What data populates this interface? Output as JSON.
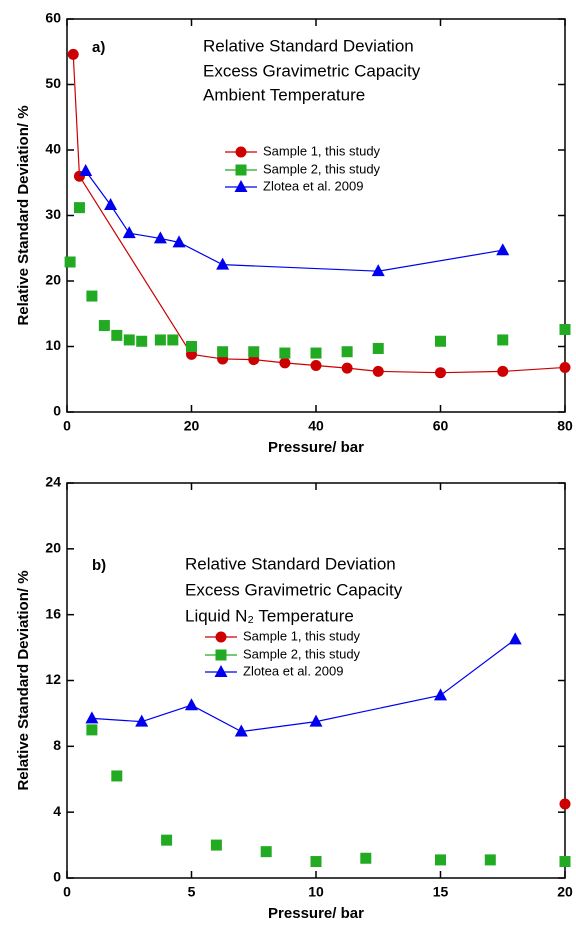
{
  "chart_data": [
    {
      "type": "line",
      "panel_label": "a)",
      "annotations": [
        "Relative Standard Deviation",
        "Excess Gravimetric Capacity",
        "Ambient Temperature"
      ],
      "x_label": "Pressure/ bar",
      "y_label": "Relative Standard Deviation/ %",
      "xlim": [
        0,
        80
      ],
      "xticks": [
        0,
        20,
        40,
        60,
        80
      ],
      "ylim": [
        0,
        60
      ],
      "yticks": [
        0,
        10,
        20,
        30,
        40,
        50,
        60
      ],
      "series": [
        {
          "name": "Sample 1, this study",
          "color": "#cc0000",
          "marker": "circle",
          "lines": true,
          "x": [
            1,
            2,
            20,
            25,
            30,
            35,
            40,
            45,
            50,
            60,
            70,
            80
          ],
          "values": [
            54.6,
            36,
            8.8,
            8.1,
            8.0,
            7.5,
            7.1,
            6.7,
            6.2,
            6.0,
            6.2,
            6.8
          ]
        },
        {
          "name": "Sample 2, this study",
          "color": "#22aa22",
          "marker": "square",
          "lines": false,
          "x": [
            0.5,
            2,
            4,
            6,
            8,
            10,
            12,
            15,
            17,
            20,
            25,
            30,
            35,
            40,
            45,
            50,
            60,
            70,
            80
          ],
          "values": [
            22.9,
            31.2,
            17.7,
            13.2,
            11.7,
            11.0,
            10.8,
            11.0,
            11.0,
            10.0,
            9.2,
            9.2,
            9.0,
            9.0,
            9.2,
            9.7,
            10.8,
            11.0,
            12.6
          ]
        },
        {
          "name": "Zlotea et al. 2009",
          "color": "#0000ee",
          "marker": "triangle",
          "lines": true,
          "x": [
            3,
            7,
            10,
            15,
            18,
            25,
            50,
            70
          ],
          "values": [
            36.8,
            31.6,
            27.3,
            26.5,
            25.9,
            22.5,
            21.5,
            24.7
          ]
        }
      ]
    },
    {
      "type": "line",
      "panel_label": "b)",
      "annotations": [
        "Relative Standard Deviation",
        "Excess Gravimetric Capacity",
        "Liquid N₂ Temperature"
      ],
      "x_label": "Pressure/ bar",
      "y_label": "Relative Standard Deviation/ %",
      "xlim": [
        0,
        20
      ],
      "xticks": [
        0,
        5,
        10,
        15,
        20
      ],
      "ylim": [
        0,
        24
      ],
      "yticks": [
        0,
        4,
        8,
        12,
        16,
        20,
        24
      ],
      "series": [
        {
          "name": "Sample 1, this study",
          "color": "#cc0000",
          "marker": "circle",
          "lines": true,
          "x": [
            20
          ],
          "values": [
            4.5
          ]
        },
        {
          "name": "Sample 2, this study",
          "color": "#22aa22",
          "marker": "square",
          "lines": false,
          "x": [
            1,
            2,
            4,
            6,
            8,
            10,
            12,
            15,
            17,
            20
          ],
          "values": [
            9.0,
            6.2,
            2.3,
            2.0,
            1.6,
            1.0,
            1.2,
            1.1,
            1.1,
            1.0
          ]
        },
        {
          "name": "Zlotea et al. 2009",
          "color": "#0000ee",
          "marker": "triangle",
          "lines": true,
          "x": [
            1,
            3,
            5,
            7,
            10,
            15,
            18
          ],
          "values": [
            9.7,
            9.5,
            10.5,
            8.9,
            9.5,
            11.1,
            14.5
          ]
        }
      ]
    }
  ]
}
